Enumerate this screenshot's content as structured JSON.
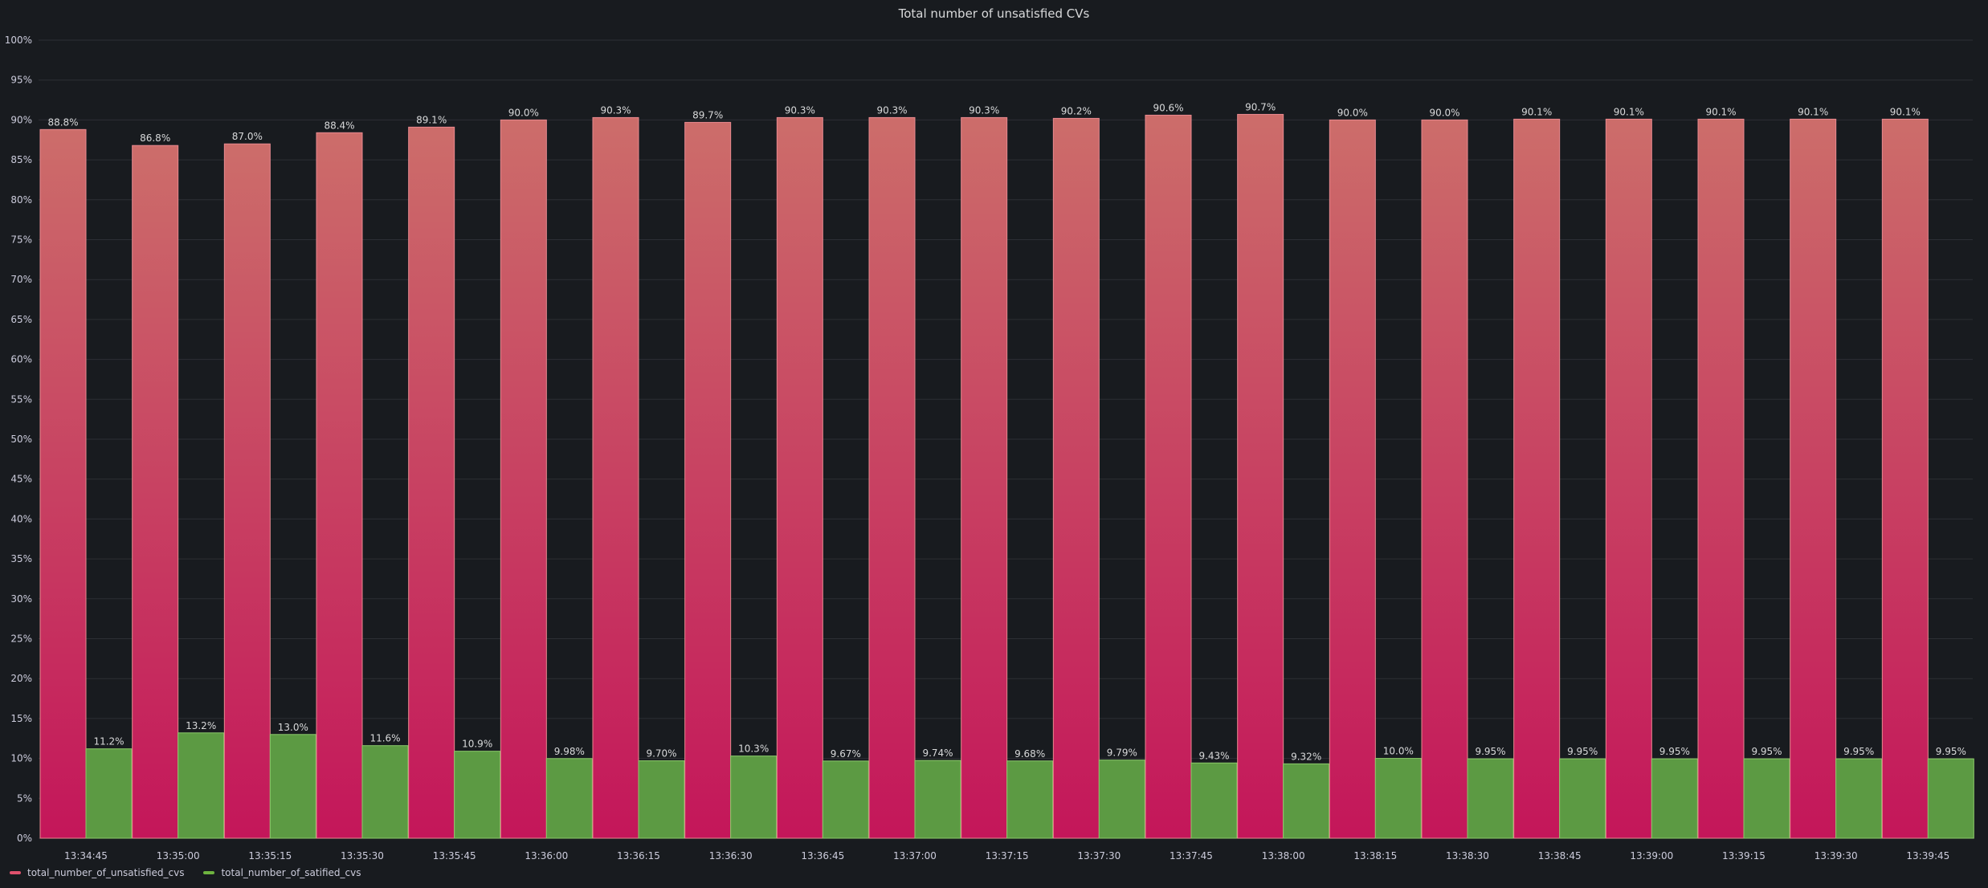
{
  "chart_data": {
    "type": "bar",
    "title": "Total number of unsatisfied CVs",
    "ylim": [
      0,
      100
    ],
    "y_ticks": [
      "0%",
      "5%",
      "10%",
      "15%",
      "20%",
      "25%",
      "30%",
      "35%",
      "40%",
      "45%",
      "50%",
      "55%",
      "60%",
      "65%",
      "70%",
      "75%",
      "80%",
      "85%",
      "90%",
      "95%",
      "100%"
    ],
    "grid": true,
    "legend_position": "bottom-left",
    "categories": [
      "13:34:45",
      "13:35:00",
      "13:35:15",
      "13:35:30",
      "13:35:45",
      "13:36:00",
      "13:36:15",
      "13:36:30",
      "13:36:45",
      "13:37:00",
      "13:37:15",
      "13:37:30",
      "13:37:45",
      "13:38:00",
      "13:38:15",
      "13:38:30",
      "13:38:45",
      "13:39:00",
      "13:39:15",
      "13:39:30",
      "13:39:45"
    ],
    "series": [
      {
        "name": "total_number_of_unsatisfied_cvs",
        "color": "#e0516d",
        "values": [
          88.8,
          86.8,
          87.0,
          88.4,
          89.1,
          90.0,
          90.3,
          89.7,
          90.3,
          90.3,
          90.3,
          90.2,
          90.6,
          90.7,
          90.0,
          90.0,
          90.1,
          90.1,
          90.1,
          90.1,
          90.1
        ],
        "labels": [
          "88.8%",
          "86.8%",
          "87.0%",
          "88.4%",
          "89.1%",
          "90.0%",
          "90.3%",
          "89.7%",
          "90.3%",
          "90.3%",
          "90.3%",
          "90.2%",
          "90.6%",
          "90.7%",
          "90.0%",
          "90.0%",
          "90.1%",
          "90.1%",
          "90.1%",
          "90.1%",
          "90.1%"
        ]
      },
      {
        "name": "total_number_of_satified_cvs",
        "color": "#6eb33f",
        "values": [
          11.2,
          13.2,
          13.0,
          11.6,
          10.9,
          9.98,
          9.7,
          10.3,
          9.67,
          9.74,
          9.68,
          9.79,
          9.43,
          9.32,
          10.0,
          9.95,
          9.95,
          9.95,
          9.95,
          9.95,
          9.95
        ],
        "labels": [
          "11.2%",
          "13.2%",
          "13.0%",
          "11.6%",
          "10.9%",
          "9.98%",
          "9.70%",
          "10.3%",
          "9.67%",
          "9.74%",
          "9.68%",
          "9.79%",
          "9.43%",
          "9.32%",
          "10.0%",
          "9.95%",
          "9.95%",
          "9.95%",
          "9.95%",
          "9.95%",
          "9.95%"
        ]
      }
    ]
  }
}
